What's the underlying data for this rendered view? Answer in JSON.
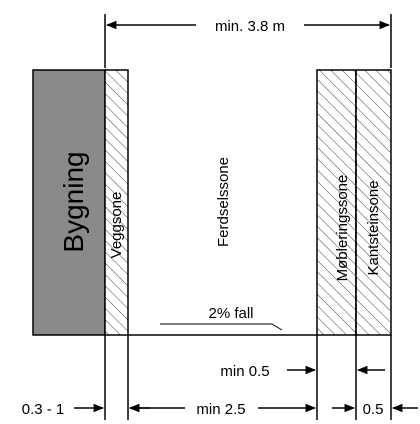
{
  "zones": {
    "building": {
      "label": "Bygning",
      "color": "#8a8a8a"
    },
    "wall_zone": {
      "label": "Veggsone"
    },
    "traffic_zone": {
      "label": "Ferdselssone"
    },
    "furniture_zone": {
      "label": "Møbleringssone"
    },
    "curb_zone": {
      "label": "Kantsteinsone"
    }
  },
  "slope": {
    "label": "2% fall"
  },
  "dimensions": {
    "total_width": "min. 3.8 m",
    "furniture": "min 0.5",
    "building_offset": "0.3 - 1",
    "traffic": "min 2.5",
    "curb": "0.5"
  }
}
